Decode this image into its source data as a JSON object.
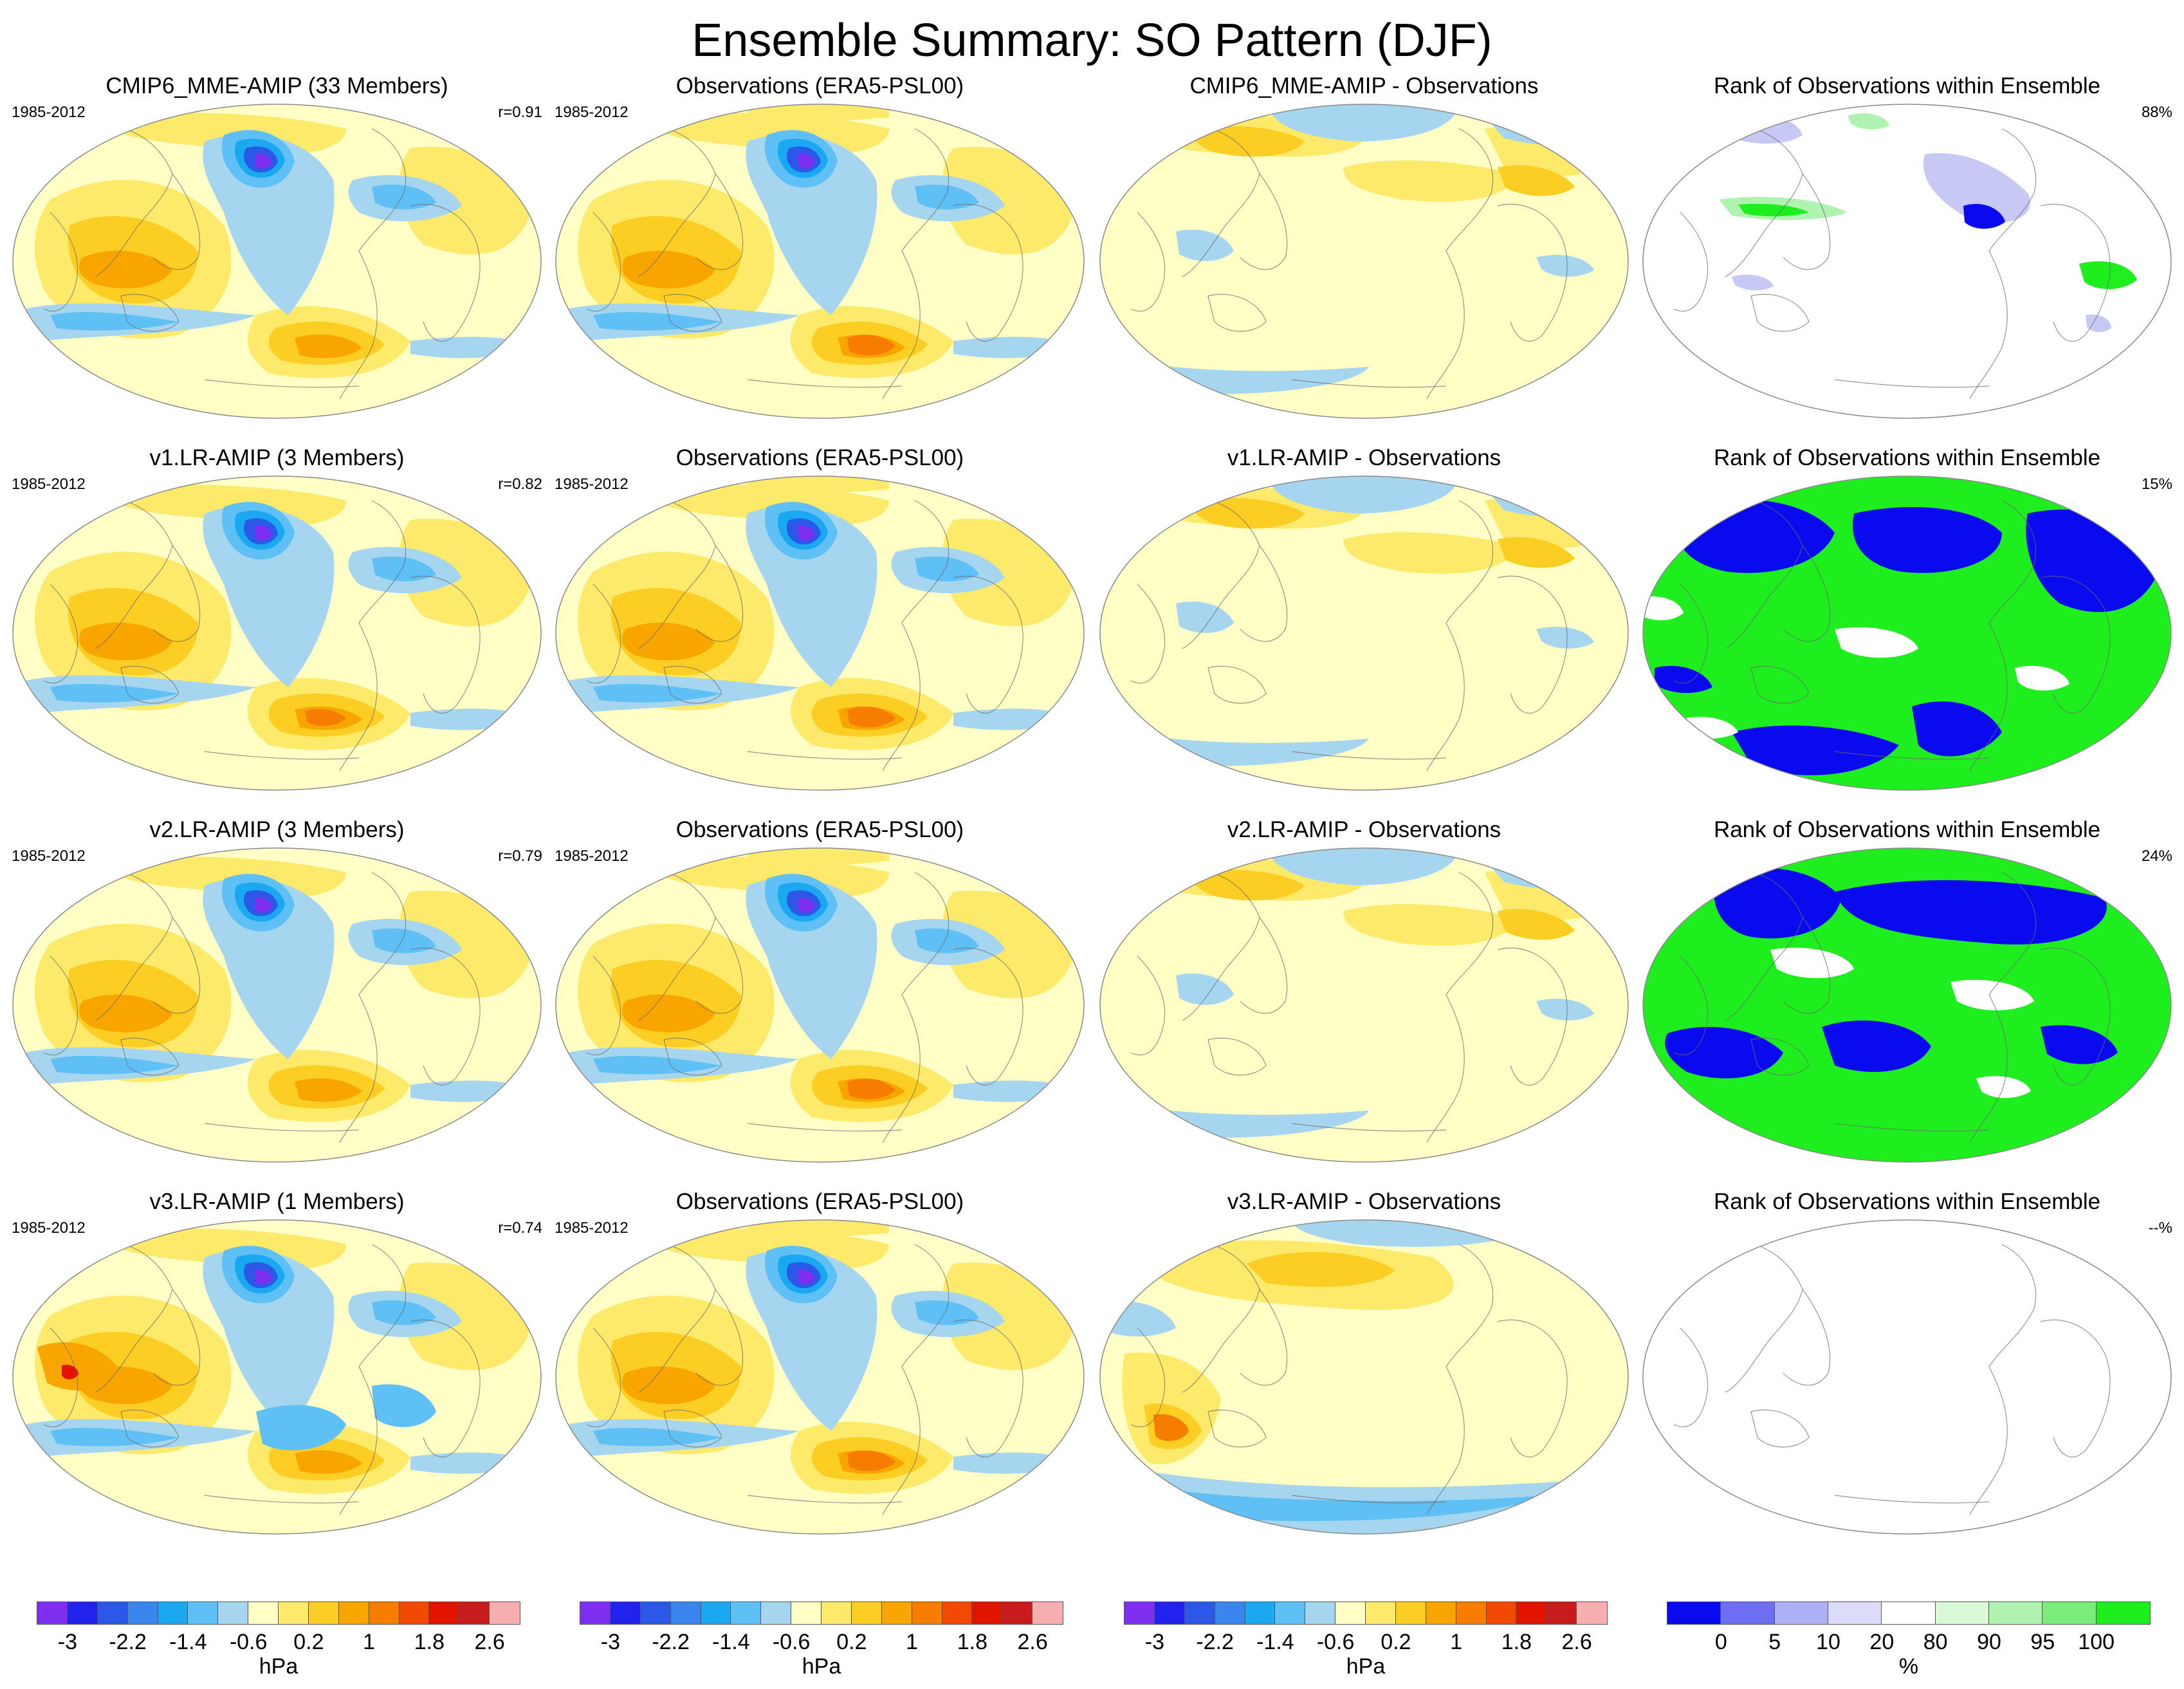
{
  "title": "Ensemble Summary: SO Pattern (DJF)",
  "rows": [
    {
      "model_title": "CMIP6_MME-AMIP (33 Members)",
      "model_period": "1985-2012",
      "model_r": "r=0.91",
      "obs_title": "Observations (ERA5-PSL00)",
      "obs_period": "1985-2012",
      "diff_title": "CMIP6_MME-AMIP - Observations",
      "rank_title": "Rank of Observations within Ensemble",
      "rank_pct": "88%",
      "rank_style": "sparse"
    },
    {
      "model_title": "v1.LR-AMIP (3 Members)",
      "model_period": "1985-2012",
      "model_r": "r=0.82",
      "obs_title": "Observations (ERA5-PSL00)",
      "obs_period": "1985-2012",
      "diff_title": "v1.LR-AMIP - Observations",
      "rank_title": "Rank of Observations within Ensemble",
      "rank_pct": "15%",
      "rank_style": "full"
    },
    {
      "model_title": "v2.LR-AMIP (3 Members)",
      "model_period": "1985-2012",
      "model_r": "r=0.79",
      "obs_title": "Observations (ERA5-PSL00)",
      "obs_period": "1985-2012",
      "diff_title": "v2.LR-AMIP - Observations",
      "rank_title": "Rank of Observations within Ensemble",
      "rank_pct": "24%",
      "rank_style": "full"
    },
    {
      "model_title": "v3.LR-AMIP (1 Members)",
      "model_period": "1985-2012",
      "model_r": "r=0.74",
      "obs_title": "Observations (ERA5-PSL00)",
      "obs_period": "1985-2012",
      "diff_title": "v3.LR-AMIP - Observations",
      "rank_title": "Rank of Observations within Ensemble",
      "rank_pct": "--%",
      "rank_style": "empty"
    }
  ],
  "colorbar_hpa": {
    "unit": "hPa",
    "colors": [
      "#7d2ef0",
      "#2222ee",
      "#2b58e6",
      "#3a84ee",
      "#1aa8f0",
      "#5fc0f5",
      "#a6d6ef",
      "#ffffc6",
      "#fde96a",
      "#fccd22",
      "#f9a500",
      "#f77d00",
      "#f24a00",
      "#e21400",
      "#c81c1c",
      "#f7aeae"
    ],
    "tick_labels": [
      "-3",
      "-2.2",
      "-1.4",
      "-0.6",
      "0.2",
      "1",
      "1.8",
      "2.6"
    ]
  },
  "colorbar_rank": {
    "unit": "%",
    "colors": [
      "#0a0aee",
      "#6e6ef2",
      "#b0b0f6",
      "#dcdcfa",
      "#ffffff",
      "#d9f9d9",
      "#b0f2b0",
      "#7aec7a",
      "#1eee1e"
    ],
    "tick_labels": [
      "0",
      "5",
      "10",
      "20",
      "80",
      "90",
      "95",
      "100"
    ]
  },
  "field_colors": {
    "yellow": "#ffffc6",
    "gold": "#fde96a",
    "orange": "#fccd22",
    "dark_orange": "#f9a500",
    "red_orange": "#f77d00",
    "red": "#e21400",
    "light_blue": "#a6d6ef",
    "blue": "#5fc0f5",
    "mid_blue": "#1aa8f0",
    "dark_blue": "#2b58e6",
    "deep_blue": "#2222ee",
    "violet": "#7d2ef0",
    "rank_blue": "#0a0aee",
    "rank_green": "#1eee1e",
    "rank_lblue": "#c8c8f4",
    "rank_lgreen": "#b0f2b0"
  }
}
